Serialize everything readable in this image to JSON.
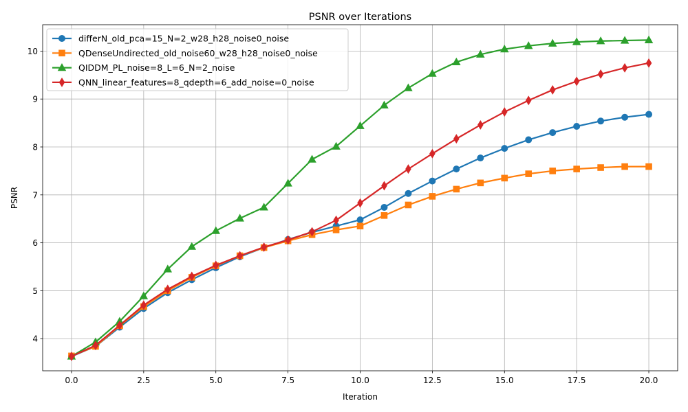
{
  "chart_data": {
    "type": "line",
    "title": "PSNR over Iterations",
    "xlabel": "Iteration",
    "ylabel": "PSNR",
    "xlim": [
      -1.0,
      21.0
    ],
    "ylim": [
      3.33,
      10.55
    ],
    "xticks": [
      0.0,
      2.5,
      5.0,
      7.5,
      10.0,
      12.5,
      15.0,
      17.5,
      20.0
    ],
    "xtick_labels": [
      "0.0",
      "2.5",
      "5.0",
      "7.5",
      "10.0",
      "12.5",
      "15.0",
      "17.5",
      "20.0"
    ],
    "yticks": [
      4,
      5,
      6,
      7,
      8,
      9,
      10
    ],
    "ytick_labels": [
      "4",
      "5",
      "6",
      "7",
      "8",
      "9",
      "10"
    ],
    "grid": true,
    "legend_position": "top-left",
    "x": [
      0.0,
      0.833,
      1.667,
      2.5,
      3.333,
      4.167,
      5.0,
      5.833,
      6.667,
      7.5,
      8.333,
      9.167,
      10.0,
      10.833,
      11.667,
      12.5,
      13.333,
      14.167,
      15.0,
      15.833,
      16.667,
      17.5,
      18.333,
      19.167,
      20.0
    ],
    "series": [
      {
        "name": "differN_old_pca=15_N=2_w28_h28_noise0_noise",
        "color": "#1f77b4",
        "marker": "circle",
        "values": [
          3.63,
          3.84,
          4.24,
          4.63,
          4.96,
          5.23,
          5.48,
          5.71,
          5.9,
          6.07,
          6.22,
          6.35,
          6.48,
          6.74,
          7.03,
          7.29,
          7.54,
          7.77,
          7.97,
          8.15,
          8.3,
          8.43,
          8.54,
          8.62,
          8.68
        ]
      },
      {
        "name": "QDenseUndirected_old_noise60_w28_h28_noise0_noise",
        "color": "#ff7f0e",
        "marker": "square",
        "values": [
          3.64,
          3.84,
          4.27,
          4.67,
          5.0,
          5.28,
          5.52,
          5.73,
          5.9,
          6.04,
          6.17,
          6.27,
          6.35,
          6.57,
          6.79,
          6.97,
          7.12,
          7.25,
          7.35,
          7.44,
          7.5,
          7.54,
          7.57,
          7.59,
          7.59
        ]
      },
      {
        "name": "QIDDM_PL_noise=8_L=6_N=2_noise",
        "color": "#2ca02c",
        "marker": "triangle",
        "values": [
          3.63,
          3.93,
          4.36,
          4.89,
          5.45,
          5.92,
          6.25,
          6.51,
          6.74,
          7.24,
          7.74,
          8.01,
          8.44,
          8.87,
          9.23,
          9.53,
          9.77,
          9.93,
          10.04,
          10.11,
          10.16,
          10.19,
          10.21,
          10.22,
          10.23
        ]
      },
      {
        "name": "QNN_linear_features=8_qdepth=6_add_noise=0_noise",
        "color": "#d62728",
        "marker": "thin_diamond",
        "values": [
          3.63,
          3.86,
          4.28,
          4.7,
          5.03,
          5.3,
          5.53,
          5.73,
          5.91,
          6.06,
          6.23,
          6.47,
          6.83,
          7.19,
          7.54,
          7.86,
          8.17,
          8.46,
          8.73,
          8.97,
          9.19,
          9.37,
          9.52,
          9.65,
          9.75
        ]
      }
    ]
  }
}
